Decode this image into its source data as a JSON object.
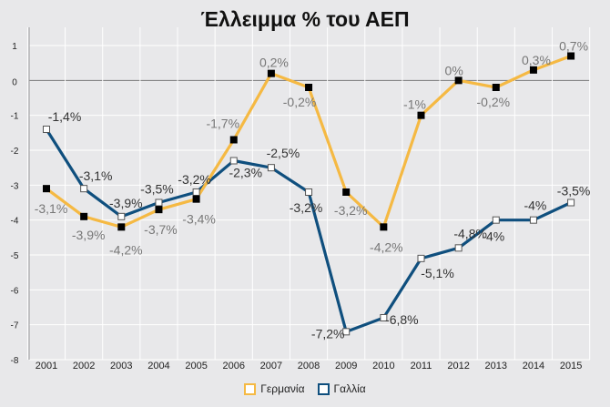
{
  "chart_data": {
    "type": "line",
    "title": "Έλλειμμα % του ΑΕΠ",
    "xlabel": "",
    "ylabel": "",
    "x": [
      "2001",
      "2002",
      "2003",
      "2004",
      "2005",
      "2006",
      "2007",
      "2008",
      "2009",
      "2010",
      "2011",
      "2012",
      "2013",
      "2014",
      "2015"
    ],
    "yticks": [
      "1",
      "0",
      "-1",
      "-2",
      "-3",
      "-4",
      "-5",
      "-6",
      "-7",
      "-8"
    ],
    "ylim": [
      -8,
      1
    ],
    "grid": true,
    "legend_position": "bottom",
    "series": [
      {
        "name": "Γερμανία",
        "color": "#f5b943",
        "values": [
          -3.1,
          -3.9,
          -4.2,
          -3.7,
          -3.4,
          -1.7,
          0.2,
          -0.2,
          -3.2,
          -4.2,
          -1,
          0,
          -0.2,
          0.3,
          0.7
        ],
        "labels": [
          "-3,1%",
          "-3,9%",
          "-4,2%",
          "-3,7%",
          "-3,4%",
          "-1,7%",
          "0,2%",
          "-0,2%",
          "-3,2%",
          "-4,2%",
          "-1%",
          "0%",
          "-0,2%",
          "0,3%",
          "0,7%"
        ]
      },
      {
        "name": "Γαλλία",
        "color": "#0f4f7e",
        "values": [
          -1.4,
          -3.1,
          -3.9,
          -3.5,
          -3.2,
          -2.3,
          -2.5,
          -3.2,
          -7.2,
          -6.8,
          -5.1,
          -4.8,
          -4,
          -4,
          -3.5
        ],
        "labels": [
          "-1,4%",
          "-3,1%",
          "-3,9%",
          "-3,5%",
          "-3,2%",
          "-2,3%",
          "-2,5%",
          "-3,2%",
          "-7,2%",
          "-6,8%",
          "-5,1%",
          "-4,8%",
          "-4%",
          "-4%",
          "-3,5%"
        ]
      }
    ]
  }
}
